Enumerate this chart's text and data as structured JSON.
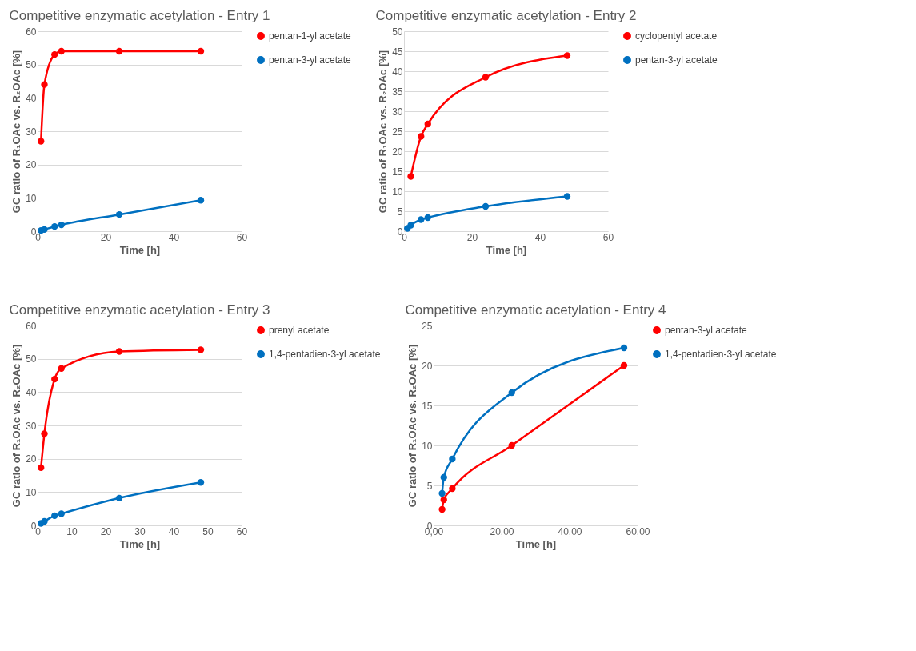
{
  "chart_data": [
    {
      "type": "line",
      "title": "Competitive enzymatic acetylation - Entry 1",
      "xlabel": "Time [h]",
      "ylabel": "GC ratio of R₁OAc vs. R₂OAc [%]",
      "x": [
        1,
        2,
        5,
        7,
        24,
        48
      ],
      "series": [
        {
          "name": "pentan-1-yl acetate",
          "color": "#ff0000",
          "values": [
            27,
            44,
            53,
            54,
            54,
            54
          ]
        },
        {
          "name": "pentan-3-yl acetate",
          "color": "#0070c0",
          "values": [
            0.2,
            0.5,
            1.4,
            1.9,
            5,
            9.3
          ]
        }
      ],
      "xlim": [
        0,
        60
      ],
      "xticks": [
        0,
        20,
        40,
        60
      ],
      "ylim": [
        0,
        60
      ],
      "yticks": [
        0,
        10,
        20,
        30,
        40,
        50,
        60
      ],
      "grid": "y",
      "legend": "right",
      "marker": "circle",
      "line_style": "solid"
    },
    {
      "type": "line",
      "title": "Competitive enzymatic acetylation - Entry 2",
      "xlabel": "Time [h]",
      "ylabel": "GC ratio of R₁OAc vs. R₂OAc [%]",
      "x": [
        1,
        2,
        5,
        7,
        24,
        48
      ],
      "series": [
        {
          "name": "cyclopentyl acetate",
          "color": "#ff0000",
          "x": [
            2,
            5,
            7,
            24,
            48
          ],
          "values": [
            13.7,
            23.7,
            26.8,
            38.5,
            43.9
          ]
        },
        {
          "name": "pentan-3-yl acetate",
          "color": "#0070c0",
          "values": [
            0.7,
            1.5,
            2.9,
            3.4,
            6.2,
            8.7
          ]
        }
      ],
      "xlim": [
        0,
        60
      ],
      "xticks": [
        0,
        20,
        40,
        60
      ],
      "ylim": [
        0,
        50
      ],
      "yticks": [
        0,
        5,
        10,
        15,
        20,
        25,
        30,
        35,
        40,
        45,
        50
      ],
      "grid": "y",
      "legend": "right",
      "marker": "circle",
      "line_style": "solid"
    },
    {
      "type": "line",
      "title": "Competitive enzymatic acetylation - Entry 3",
      "xlabel": "Time [h]",
      "ylabel": "GC ratio of R₁OAc vs. R₂OAc [%]",
      "x": [
        1,
        2,
        5,
        7,
        24,
        48
      ],
      "series": [
        {
          "name": "prenyl acetate",
          "color": "#ff0000",
          "values": [
            17.3,
            27.5,
            43.9,
            47.1,
            52.2,
            52.7
          ]
        },
        {
          "name": "1,4-pentadien-3-yl acetate",
          "color": "#0070c0",
          "values": [
            0.6,
            1.2,
            2.9,
            3.5,
            8.2,
            12.9
          ]
        }
      ],
      "xlim": [
        0,
        60
      ],
      "xticks": [
        0,
        10,
        20,
        30,
        40,
        50,
        60
      ],
      "ylim": [
        0,
        60
      ],
      "yticks": [
        0,
        10,
        20,
        30,
        40,
        50,
        60
      ],
      "grid": "y",
      "legend": "right",
      "marker": "circle",
      "line_style": "solid"
    },
    {
      "type": "line",
      "title": "Competitive enzymatic acetylation - Entry 4",
      "xlabel": "Time [h]",
      "ylabel": "GC ratio of R₁OAc vs. R₂OAc [%]",
      "x": [
        2.5,
        3,
        5.5,
        23,
        56
      ],
      "series": [
        {
          "name": "pentan-3-yl acetate",
          "color": "#ff0000",
          "values": [
            2,
            3.2,
            4.6,
            10,
            20
          ]
        },
        {
          "name": "1,4-pentadien-3-yl acetate",
          "color": "#0070c0",
          "values": [
            4,
            6,
            8.3,
            16.6,
            22.2
          ]
        }
      ],
      "xlim": [
        0,
        60
      ],
      "xticks": [
        {
          "value": 0,
          "label": "0,00"
        },
        {
          "value": 20,
          "label": "20,00"
        },
        {
          "value": 40,
          "label": "40,00"
        },
        {
          "value": 60,
          "label": "60,00"
        }
      ],
      "ylim": [
        0,
        25
      ],
      "yticks": [
        0,
        5,
        10,
        15,
        20,
        25
      ],
      "grid": "y",
      "legend": "right",
      "marker": "circle",
      "line_style": "solid"
    }
  ]
}
